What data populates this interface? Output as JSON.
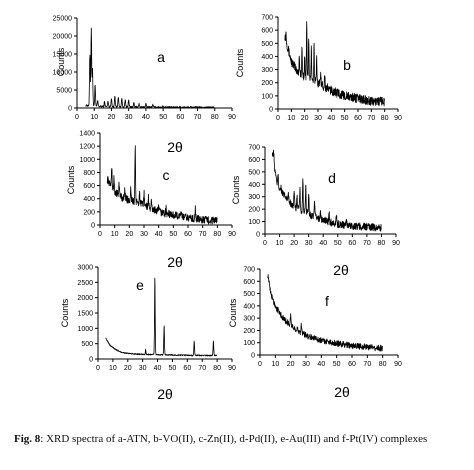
{
  "caption": {
    "label": "Fig. 8",
    "text": ": XRD spectra of a-ATN, b-VO(II), c-Zn(II), d-Pd(II), e-Au(III) and f-Pt(IV) complexes"
  },
  "chart_data": [
    {
      "type": "line",
      "panel_letter": "a",
      "xlabel": "2θ",
      "ylabel": "Counts",
      "xlim": [
        0,
        90
      ],
      "ylim": [
        0,
        25000
      ],
      "xticks": [
        0,
        10,
        20,
        30,
        40,
        50,
        60,
        70,
        80,
        90
      ],
      "yticks": [
        0,
        5000,
        10000,
        15000,
        20000,
        25000
      ],
      "baseline": [
        [
          5,
          700
        ],
        [
          10,
          500
        ],
        [
          20,
          350
        ],
        [
          40,
          250
        ],
        [
          80,
          150
        ]
      ],
      "peaks": [
        [
          7.5,
          15000
        ],
        [
          8.3,
          22000
        ],
        [
          9,
          11000
        ],
        [
          10.5,
          6500
        ],
        [
          12,
          2000
        ],
        [
          16,
          1800
        ],
        [
          18,
          2000
        ],
        [
          20,
          2800
        ],
        [
          22,
          3500
        ],
        [
          24,
          3200
        ],
        [
          26,
          2800
        ],
        [
          28,
          2200
        ],
        [
          30,
          2400
        ],
        [
          33,
          1500
        ],
        [
          36,
          1200
        ],
        [
          40,
          1200
        ],
        [
          44,
          900
        ],
        [
          50,
          600
        ],
        [
          60,
          500
        ]
      ],
      "noise": 250
    },
    {
      "type": "line",
      "panel_letter": "b",
      "xlabel": "",
      "ylabel": "Counts",
      "xlim": [
        0,
        90
      ],
      "ylim": [
        0,
        700
      ],
      "xticks": [
        0,
        10,
        20,
        30,
        40,
        50,
        60,
        70,
        80,
        90
      ],
      "yticks": [
        0,
        100,
        200,
        300,
        400,
        500,
        600,
        700
      ],
      "baseline": [
        [
          5,
          560
        ],
        [
          10,
          360
        ],
        [
          15,
          280
        ],
        [
          20,
          250
        ],
        [
          30,
          200
        ],
        [
          40,
          140
        ],
        [
          50,
          100
        ],
        [
          60,
          80
        ],
        [
          70,
          60
        ],
        [
          80,
          55
        ]
      ],
      "peaks": [
        [
          6,
          580
        ],
        [
          16,
          420
        ],
        [
          18,
          460
        ],
        [
          20,
          400
        ],
        [
          21.5,
          660
        ],
        [
          23,
          560
        ],
        [
          25,
          460
        ],
        [
          27,
          480
        ],
        [
          29,
          380
        ],
        [
          32,
          300
        ],
        [
          35,
          260
        ]
      ],
      "noise": 35
    },
    {
      "type": "line",
      "panel_letter": "c",
      "xlabel": "2θ",
      "ylabel": "Counts",
      "xlim": [
        0,
        90
      ],
      "ylim": [
        0,
        1400
      ],
      "xticks": [
        0,
        10,
        20,
        30,
        40,
        50,
        60,
        70,
        80,
        90
      ],
      "yticks": [
        0,
        200,
        400,
        600,
        800,
        1000,
        1200,
        1400
      ],
      "baseline": [
        [
          5,
          700
        ],
        [
          10,
          500
        ],
        [
          15,
          420
        ],
        [
          20,
          380
        ],
        [
          30,
          300
        ],
        [
          40,
          200
        ],
        [
          50,
          150
        ],
        [
          60,
          110
        ],
        [
          70,
          80
        ],
        [
          80,
          60
        ]
      ],
      "peaks": [
        [
          8,
          900
        ],
        [
          9.5,
          700
        ],
        [
          13,
          650
        ],
        [
          17,
          560
        ],
        [
          21,
          560
        ],
        [
          24,
          1220
        ],
        [
          27,
          500
        ],
        [
          30,
          500
        ],
        [
          33,
          420
        ],
        [
          35,
          350
        ],
        [
          40,
          280
        ],
        [
          45,
          250
        ],
        [
          55,
          200
        ],
        [
          65,
          250
        ]
      ],
      "noise": 60
    },
    {
      "type": "line",
      "panel_letter": "d",
      "xlabel": "2θ",
      "ylabel": "Counts",
      "xlim": [
        0,
        90
      ],
      "ylim": [
        0,
        700
      ],
      "xticks": [
        0,
        10,
        20,
        30,
        40,
        50,
        60,
        70,
        80,
        90
      ],
      "yticks": [
        0,
        100,
        200,
        300,
        400,
        500,
        600,
        700
      ],
      "baseline": [
        [
          5,
          660
        ],
        [
          8,
          420
        ],
        [
          10,
          360
        ],
        [
          15,
          280
        ],
        [
          20,
          220
        ],
        [
          30,
          160
        ],
        [
          40,
          110
        ],
        [
          50,
          80
        ],
        [
          60,
          65
        ],
        [
          80,
          50
        ]
      ],
      "peaks": [
        [
          6,
          660
        ],
        [
          9,
          500
        ],
        [
          11,
          380
        ],
        [
          16,
          320
        ],
        [
          20,
          350
        ],
        [
          22,
          300
        ],
        [
          24,
          360
        ],
        [
          26,
          420
        ],
        [
          28,
          390
        ],
        [
          30,
          320
        ],
        [
          34,
          250
        ],
        [
          38,
          200
        ],
        [
          44,
          180
        ],
        [
          49,
          160
        ],
        [
          56,
          120
        ]
      ],
      "noise": 30
    },
    {
      "type": "line",
      "panel_letter": "e",
      "xlabel": "2θ",
      "ylabel": "Counts",
      "xlim": [
        0,
        90
      ],
      "ylim": [
        0,
        3000
      ],
      "xticks": [
        0,
        10,
        20,
        30,
        40,
        50,
        60,
        70,
        80,
        90
      ],
      "yticks": [
        0,
        500,
        1000,
        1500,
        2000,
        2500,
        3000
      ],
      "baseline": [
        [
          5,
          700
        ],
        [
          8,
          450
        ],
        [
          12,
          300
        ],
        [
          16,
          220
        ],
        [
          20,
          180
        ],
        [
          30,
          150
        ],
        [
          40,
          140
        ],
        [
          60,
          120
        ],
        [
          80,
          110
        ]
      ],
      "peaks": [
        [
          32,
          300
        ],
        [
          38.2,
          2700
        ],
        [
          44.4,
          1100
        ],
        [
          64.6,
          600
        ],
        [
          77.5,
          600
        ]
      ],
      "noise": 20
    },
    {
      "type": "line",
      "panel_letter": "f",
      "xlabel": "2θ",
      "ylabel": "Counts",
      "xlim": [
        0,
        90
      ],
      "ylim": [
        0,
        700
      ],
      "xticks": [
        0,
        10,
        20,
        30,
        40,
        50,
        60,
        70,
        80,
        90
      ],
      "yticks": [
        0,
        100,
        200,
        300,
        400,
        500,
        600,
        700
      ],
      "baseline": [
        [
          5,
          660
        ],
        [
          7,
          500
        ],
        [
          10,
          400
        ],
        [
          15,
          300
        ],
        [
          20,
          240
        ],
        [
          30,
          160
        ],
        [
          40,
          120
        ],
        [
          50,
          95
        ],
        [
          60,
          75
        ],
        [
          70,
          65
        ],
        [
          80,
          55
        ]
      ],
      "peaks": [
        [
          20,
          330
        ],
        [
          27,
          250
        ]
      ],
      "noise": 25
    }
  ]
}
